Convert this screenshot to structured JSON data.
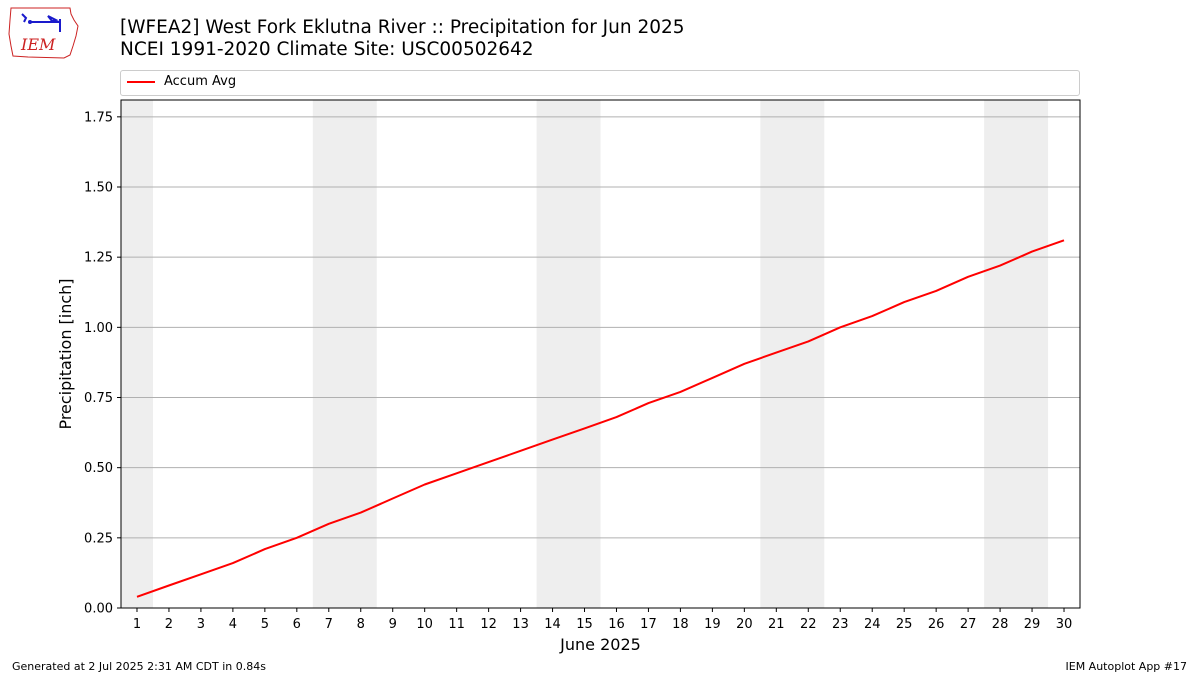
{
  "header": {
    "title_line1": "[WFEA2] West Fork Eklutna River :: Precipitation for Jun 2025",
    "title_line2": "NCEI 1991-2020 Climate Site: USC00502642",
    "logo_text": "IEM"
  },
  "legend": {
    "label": "Accum Avg"
  },
  "footer": {
    "left": "Generated at 2 Jul 2025 2:31 AM CDT in 0.84s",
    "right": "IEM Autoplot App #17"
  },
  "colors": {
    "series": "#ff0000",
    "weekend_band": "#eeeeee",
    "grid": "#b0b0b0",
    "logo_red": "#cc2222",
    "logo_blue": "#1a1acc"
  },
  "chart_data": {
    "type": "line",
    "title": "[WFEA2] West Fork Eklutna River :: Precipitation for Jun 2025",
    "subtitle": "NCEI 1991-2020 Climate Site: USC00502642",
    "xlabel": "June 2025",
    "ylabel": "Precipitation [inch]",
    "x": [
      1,
      2,
      3,
      4,
      5,
      6,
      7,
      8,
      9,
      10,
      11,
      12,
      13,
      14,
      15,
      16,
      17,
      18,
      19,
      20,
      21,
      22,
      23,
      24,
      25,
      26,
      27,
      28,
      29,
      30
    ],
    "series": [
      {
        "name": "Accum Avg",
        "color": "#ff0000",
        "values": [
          0.04,
          0.08,
          0.12,
          0.16,
          0.21,
          0.25,
          0.3,
          0.34,
          0.39,
          0.44,
          0.48,
          0.52,
          0.56,
          0.6,
          0.64,
          0.68,
          0.73,
          0.77,
          0.82,
          0.87,
          0.91,
          0.95,
          1.0,
          1.04,
          1.09,
          1.13,
          1.18,
          1.22,
          1.27,
          1.31
        ]
      }
    ],
    "xlim": [
      0.5,
      30.5
    ],
    "ylim": [
      0,
      1.81
    ],
    "yticks": [
      0.0,
      0.25,
      0.5,
      0.75,
      1.0,
      1.25,
      1.5,
      1.75
    ],
    "ytick_labels": [
      "0.00",
      "0.25",
      "0.50",
      "0.75",
      "1.00",
      "1.25",
      "1.50",
      "1.75"
    ],
    "xtick_labels": [
      "1",
      "2",
      "3",
      "4",
      "5",
      "6",
      "7",
      "8",
      "9",
      "10",
      "11",
      "12",
      "13",
      "14",
      "15",
      "16",
      "17",
      "18",
      "19",
      "20",
      "21",
      "22",
      "23",
      "24",
      "25",
      "26",
      "27",
      "28",
      "29",
      "30"
    ],
    "weekend_bands": [
      [
        0.5,
        1.5
      ],
      [
        6.5,
        8.5
      ],
      [
        13.5,
        15.5
      ],
      [
        20.5,
        22.5
      ],
      [
        27.5,
        29.5
      ]
    ],
    "grid": "horizontal",
    "legend_position": "top"
  }
}
